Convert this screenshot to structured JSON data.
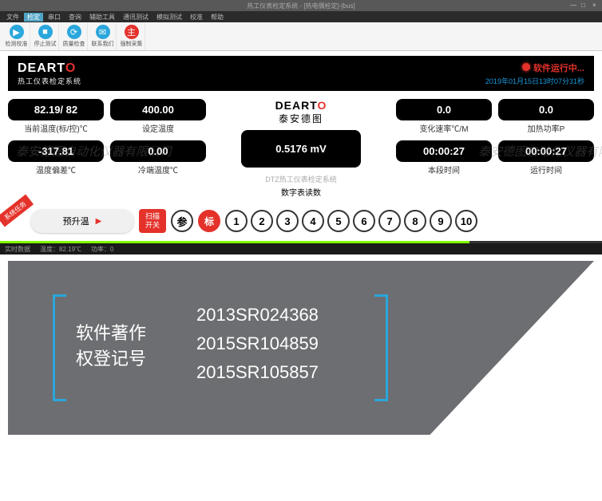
{
  "window": {
    "title": "热工仪表检定系统 - [热电偶检定]-[bus]"
  },
  "menu": {
    "items": [
      "文件",
      "检定",
      "串口",
      "查询",
      "辅助工具",
      "通讯测试",
      "模拟测试",
      "校准",
      "帮助"
    ],
    "active_index": 1
  },
  "toolbar": {
    "buttons": [
      {
        "label": "检测校准",
        "color": "#2aa7dc",
        "glyph": "▶"
      },
      {
        "label": "停止测试",
        "color": "#2aa7dc",
        "glyph": "■"
      },
      {
        "label": "质量检查",
        "color": "#2aa7dc",
        "glyph": "⟳"
      },
      {
        "label": "联系我们",
        "color": "#2aa7dc",
        "glyph": "✉"
      },
      {
        "label": "强制采集",
        "color": "#e4322b",
        "glyph": "主"
      }
    ]
  },
  "header": {
    "brand_prefix": "DEART",
    "brand_red": "O",
    "subtitle": "热工仪表检定系统",
    "status_text": "软件运行中...",
    "timestamp": "2019年01月15日13时07分31秒"
  },
  "cards": {
    "curr_temp": {
      "value": "82.19/  82",
      "label": "当前温度(标/控)℃"
    },
    "set_temp": {
      "value": "400.00",
      "label": "设定温度"
    },
    "rate": {
      "value": "0.0",
      "label": "变化速率℃/M"
    },
    "power": {
      "value": "0.0",
      "label": "加热功率P"
    },
    "dev": {
      "value": "-317.81",
      "label": "温度偏差℃"
    },
    "cold": {
      "value": "0.00",
      "label": "冷端温度℃"
    },
    "seg_time": {
      "value": "00:00:27",
      "label": "本段时间"
    },
    "run_time": {
      "value": "00:00:27",
      "label": "运行时间"
    }
  },
  "center": {
    "brand_prefix": "DEART",
    "brand_red": "O",
    "brand_sub": "泰安德图",
    "reading": "0.5176 mV",
    "dtz": "DTZ热工仪表检定系统",
    "label": "数字表读数"
  },
  "bottom": {
    "ribbon": "系统任务",
    "pill": "预升温",
    "scan": "扫描\n开关",
    "c1": "参",
    "c2": "标",
    "nums": [
      "1",
      "2",
      "3",
      "4",
      "5",
      "6",
      "7",
      "8",
      "9",
      "10"
    ]
  },
  "statusbar": {
    "items": [
      "实时数据",
      "温度：82.19℃",
      "功率：0"
    ]
  },
  "watermark": "泰安德图自动化仪器有限公司",
  "lower": {
    "label": "软件著作\n权登记号",
    "numbers": [
      "2013SR024368",
      "2015SR104859",
      "2015SR105857"
    ],
    "bg": "#6d6e71",
    "bracket": "#2aa7dc",
    "text": "#ffffff"
  }
}
